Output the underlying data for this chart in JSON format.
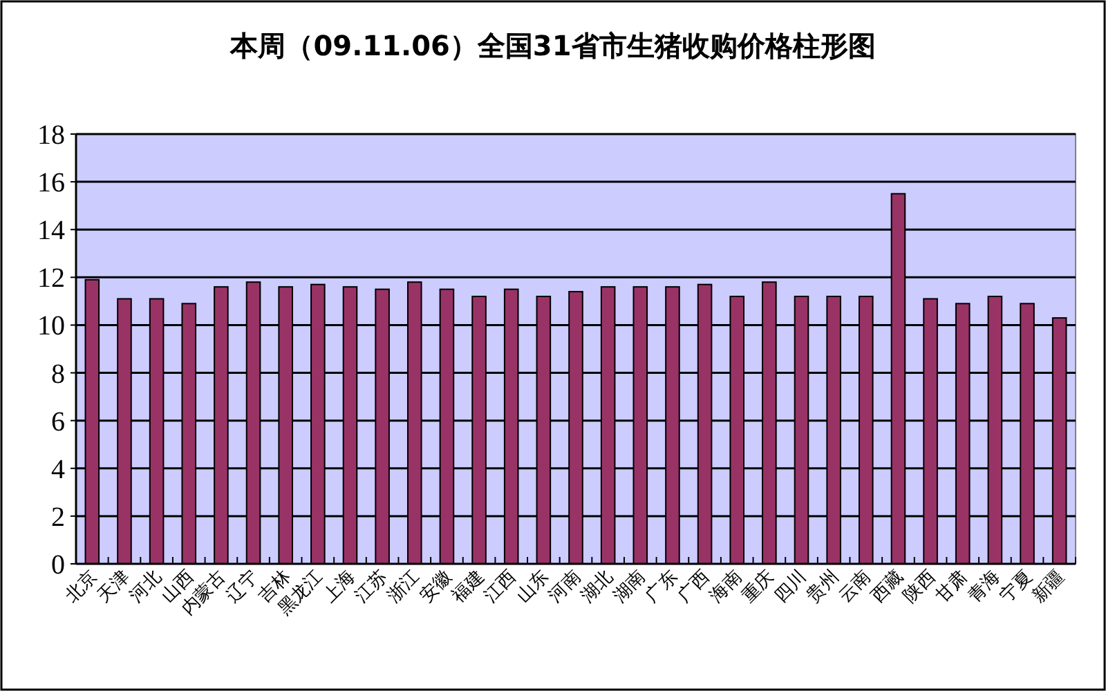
{
  "chart_data": {
    "type": "bar",
    "title": "本周（09.11.06）全国31省市生猪收购价格柱形图",
    "categories": [
      "北京",
      "天津",
      "河北",
      "山西",
      "内蒙古",
      "辽宁",
      "吉林",
      "黑龙江",
      "上海",
      "江苏",
      "浙江",
      "安徽",
      "福建",
      "江西",
      "山东",
      "河南",
      "湖北",
      "湖南",
      "广东",
      "广西",
      "海南",
      "重庆",
      "四川",
      "贵州",
      "云南",
      "西藏",
      "陕西",
      "甘肃",
      "青海",
      "宁夏",
      "新疆"
    ],
    "values": [
      11.9,
      11.1,
      11.1,
      10.9,
      11.6,
      11.8,
      11.6,
      11.7,
      11.6,
      11.5,
      11.8,
      11.5,
      11.2,
      11.5,
      11.2,
      11.4,
      11.6,
      11.6,
      11.6,
      11.7,
      11.2,
      11.8,
      11.2,
      11.2,
      11.2,
      15.5,
      11.1,
      10.9,
      11.2,
      10.9,
      10.3
    ],
    "color": "#993366",
    "ylim": [
      0,
      18
    ],
    "yticks": [
      0,
      2,
      4,
      6,
      8,
      10,
      12,
      14,
      16,
      18
    ],
    "grid": "y"
  }
}
